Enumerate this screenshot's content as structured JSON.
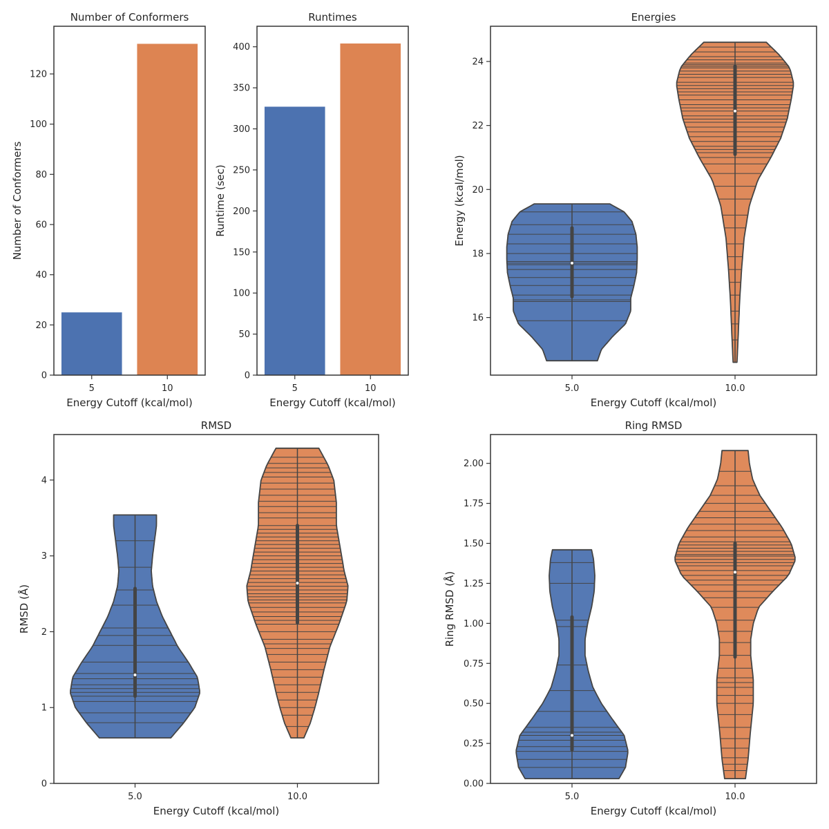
{
  "colors": {
    "blue": "#4c72b0",
    "orange": "#dd8452",
    "line": "#444444"
  },
  "chart_data": [
    {
      "id": "conformers",
      "type": "bar",
      "title": "Number of Conformers",
      "xlabel": "Energy Cutoff (kcal/mol)",
      "ylabel": "Number of Conformers",
      "categories": [
        "5",
        "10"
      ],
      "values": [
        25,
        132
      ],
      "ylim": [
        0,
        139
      ],
      "yticks": [
        0,
        20,
        40,
        60,
        80,
        100,
        120
      ],
      "grid": false
    },
    {
      "id": "runtimes",
      "type": "bar",
      "title": "Runtimes",
      "xlabel": "Energy Cutoff (kcal/mol)",
      "ylabel": "Runtime (sec)",
      "categories": [
        "5",
        "10"
      ],
      "values": [
        327,
        404
      ],
      "ylim": [
        0,
        425
      ],
      "yticks": [
        0,
        50,
        100,
        150,
        200,
        250,
        300,
        350,
        400
      ],
      "grid": false
    },
    {
      "id": "energies",
      "type": "violin",
      "title": "Energies",
      "xlabel": "Energy Cutoff (kcal/mol)",
      "ylabel": "Energy (kcal/mol)",
      "categories": [
        "5.0",
        "10.0"
      ],
      "ylim": [
        14.2,
        25.1
      ],
      "yticks": [
        16,
        18,
        20,
        22,
        24
      ],
      "series": [
        {
          "category": "5.0",
          "min": 14.65,
          "max": 19.55,
          "q1": 16.65,
          "median": 17.7,
          "q3": 18.8,
          "profile": [
            [
              14.65,
              0.39
            ],
            [
              15.0,
              0.45
            ],
            [
              15.4,
              0.62
            ],
            [
              15.8,
              0.82
            ],
            [
              16.2,
              0.9
            ],
            [
              16.6,
              0.9
            ],
            [
              17.0,
              0.95
            ],
            [
              17.4,
              0.99
            ],
            [
              17.8,
              1.0
            ],
            [
              18.2,
              1.0
            ],
            [
              18.6,
              0.98
            ],
            [
              19.0,
              0.92
            ],
            [
              19.3,
              0.8
            ],
            [
              19.55,
              0.58
            ]
          ],
          "points": [
            14.65,
            15.9,
            16.5,
            16.55,
            16.7,
            17.0,
            17.25,
            17.5,
            17.65,
            17.7,
            17.75,
            18.0,
            18.3,
            18.6,
            18.9,
            19.3,
            19.55
          ]
        },
        {
          "category": "10.0",
          "min": 14.6,
          "max": 24.6,
          "q1": 21.1,
          "median": 22.45,
          "q3": 23.85,
          "profile": [
            [
              14.6,
              0.03
            ],
            [
              15.5,
              0.05
            ],
            [
              16.5,
              0.07
            ],
            [
              17.5,
              0.1
            ],
            [
              18.5,
              0.14
            ],
            [
              19.5,
              0.22
            ],
            [
              20.3,
              0.35
            ],
            [
              21.0,
              0.55
            ],
            [
              21.6,
              0.7
            ],
            [
              22.2,
              0.8
            ],
            [
              22.8,
              0.86
            ],
            [
              23.3,
              0.9
            ],
            [
              23.8,
              0.84
            ],
            [
              24.2,
              0.68
            ],
            [
              24.6,
              0.48
            ]
          ],
          "points": [
            14.6,
            15.3,
            15.8,
            16.2,
            16.7,
            17.1,
            17.5,
            17.9,
            18.3,
            18.8,
            19.2,
            19.7,
            20.1,
            20.5,
            20.8,
            21.0,
            21.15,
            21.25,
            21.35,
            21.5,
            21.65,
            21.8,
            21.95,
            22.1,
            22.2,
            22.3,
            22.45,
            22.55,
            22.65,
            22.8,
            22.95,
            23.05,
            23.15,
            23.25,
            23.35,
            23.5,
            23.6,
            23.7,
            23.8,
            23.85,
            23.9,
            23.95,
            24.05,
            24.15,
            24.3,
            24.45,
            24.6
          ]
        }
      ],
      "grid": false
    },
    {
      "id": "rmsd",
      "type": "violin",
      "title": "RMSD",
      "xlabel": "Energy Cutoff (kcal/mol)",
      "ylabel": "RMSD (Å)",
      "categories": [
        "5.0",
        "10.0"
      ],
      "ylim": [
        0,
        4.6
      ],
      "yticks": [
        0,
        1,
        2,
        3,
        4
      ],
      "series": [
        {
          "category": "5.0",
          "min": 0.6,
          "max": 3.54,
          "q1": 1.15,
          "median": 1.43,
          "q3": 2.57,
          "profile": [
            [
              0.6,
              0.55
            ],
            [
              0.8,
              0.75
            ],
            [
              1.0,
              0.92
            ],
            [
              1.2,
              1.0
            ],
            [
              1.4,
              0.96
            ],
            [
              1.6,
              0.82
            ],
            [
              1.8,
              0.66
            ],
            [
              2.0,
              0.54
            ],
            [
              2.2,
              0.42
            ],
            [
              2.4,
              0.33
            ],
            [
              2.6,
              0.27
            ],
            [
              2.8,
              0.25
            ],
            [
              3.0,
              0.27
            ],
            [
              3.2,
              0.3
            ],
            [
              3.4,
              0.33
            ],
            [
              3.54,
              0.33
            ]
          ],
          "points": [
            0.6,
            0.8,
            0.93,
            1.08,
            1.15,
            1.2,
            1.25,
            1.3,
            1.38,
            1.45,
            1.6,
            1.82,
            1.95,
            2.05,
            2.35,
            2.55,
            2.85,
            3.2,
            3.54
          ]
        },
        {
          "category": "10.0",
          "min": 0.6,
          "max": 4.42,
          "q1": 2.12,
          "median": 2.64,
          "q3": 3.4,
          "profile": [
            [
              0.6,
              0.1
            ],
            [
              0.8,
              0.2
            ],
            [
              1.0,
              0.27
            ],
            [
              1.2,
              0.33
            ],
            [
              1.5,
              0.41
            ],
            [
              1.8,
              0.5
            ],
            [
              2.1,
              0.64
            ],
            [
              2.4,
              0.76
            ],
            [
              2.6,
              0.78
            ],
            [
              2.8,
              0.72
            ],
            [
              3.1,
              0.66
            ],
            [
              3.4,
              0.6
            ],
            [
              3.7,
              0.6
            ],
            [
              4.0,
              0.56
            ],
            [
              4.2,
              0.47
            ],
            [
              4.42,
              0.33
            ]
          ],
          "points": [
            0.6,
            0.75,
            0.9,
            1.0,
            1.1,
            1.2,
            1.3,
            1.4,
            1.5,
            1.6,
            1.7,
            1.78,
            1.84,
            1.9,
            2.0,
            2.1,
            2.15,
            2.2,
            2.26,
            2.32,
            2.38,
            2.42,
            2.46,
            2.5,
            2.55,
            2.6,
            2.65,
            2.7,
            2.75,
            2.8,
            2.85,
            2.9,
            2.95,
            3.0,
            3.05,
            3.1,
            3.15,
            3.2,
            3.25,
            3.3,
            3.35,
            3.4,
            3.5,
            3.57,
            3.65,
            3.72,
            3.8,
            3.88,
            3.96,
            4.04,
            4.1,
            4.16,
            4.22,
            4.3,
            4.42
          ]
        }
      ],
      "grid": false
    },
    {
      "id": "ring_rmsd",
      "type": "violin",
      "title": "Ring RMSD",
      "xlabel": "Energy Cutoff (kcal/mol)",
      "ylabel": "Ring RMSD (Å)",
      "categories": [
        "5.0",
        "10.0"
      ],
      "ylim": [
        0,
        2.18
      ],
      "yticks": [
        "0.00",
        "0.25",
        "0.50",
        "0.75",
        "1.00",
        "1.25",
        "1.50",
        "1.75",
        "2.00"
      ],
      "series": [
        {
          "category": "5.0",
          "min": 0.03,
          "max": 1.46,
          "q1": 0.21,
          "median": 0.3,
          "q3": 1.04,
          "profile": [
            [
              0.03,
              0.72
            ],
            [
              0.1,
              0.82
            ],
            [
              0.2,
              0.86
            ],
            [
              0.3,
              0.8
            ],
            [
              0.4,
              0.62
            ],
            [
              0.5,
              0.45
            ],
            [
              0.6,
              0.32
            ],
            [
              0.7,
              0.25
            ],
            [
              0.8,
              0.2
            ],
            [
              0.9,
              0.2
            ],
            [
              1.0,
              0.24
            ],
            [
              1.1,
              0.3
            ],
            [
              1.2,
              0.34
            ],
            [
              1.3,
              0.35
            ],
            [
              1.4,
              0.33
            ],
            [
              1.46,
              0.3
            ]
          ],
          "points": [
            0.03,
            0.1,
            0.15,
            0.2,
            0.23,
            0.27,
            0.3,
            0.32,
            0.35,
            0.45,
            0.58,
            0.74,
            0.98,
            1.02,
            1.25,
            1.38,
            1.46
          ]
        },
        {
          "category": "10.0",
          "min": 0.03,
          "max": 2.08,
          "q1": 0.79,
          "median": 1.32,
          "q3": 1.5,
          "profile": [
            [
              0.03,
              0.16
            ],
            [
              0.15,
              0.2
            ],
            [
              0.3,
              0.23
            ],
            [
              0.5,
              0.28
            ],
            [
              0.65,
              0.28
            ],
            [
              0.8,
              0.24
            ],
            [
              0.9,
              0.24
            ],
            [
              1.0,
              0.28
            ],
            [
              1.1,
              0.36
            ],
            [
              1.2,
              0.58
            ],
            [
              1.3,
              0.82
            ],
            [
              1.4,
              0.93
            ],
            [
              1.5,
              0.86
            ],
            [
              1.6,
              0.72
            ],
            [
              1.7,
              0.55
            ],
            [
              1.8,
              0.38
            ],
            [
              1.9,
              0.27
            ],
            [
              2.0,
              0.22
            ],
            [
              2.08,
              0.2
            ]
          ],
          "points": [
            0.03,
            0.08,
            0.12,
            0.16,
            0.22,
            0.28,
            0.35,
            0.43,
            0.5,
            0.55,
            0.6,
            0.63,
            0.66,
            0.72,
            0.8,
            0.88,
            0.95,
            1.02,
            1.1,
            1.16,
            1.2,
            1.24,
            1.27,
            1.3,
            1.33,
            1.36,
            1.38,
            1.4,
            1.42,
            1.43,
            1.45,
            1.47,
            1.49,
            1.51,
            1.54,
            1.58,
            1.62,
            1.66,
            1.7,
            1.75,
            1.8,
            1.86,
            1.95,
            2.08
          ]
        }
      ],
      "grid": false
    }
  ]
}
